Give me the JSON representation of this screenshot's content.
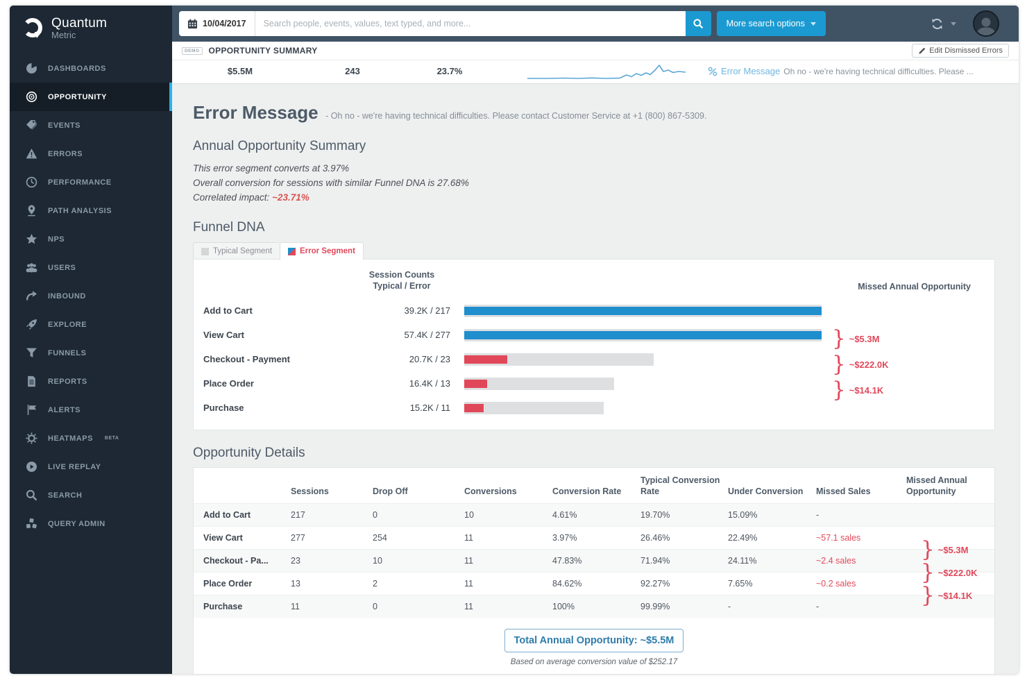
{
  "brand": {
    "name": "Quantum",
    "sub": "Metric"
  },
  "topbar": {
    "date": "10/04/2017",
    "search_placeholder": "Search people, events, values, text typed, and more...",
    "more_search_label": "More search options"
  },
  "titlebar": {
    "demo_badge": "DEMO",
    "title": "OPPORTUNITY SUMMARY",
    "edit_button": "Edit Dismissed Errors"
  },
  "stats": {
    "missed_opportunity": "$5.5M",
    "sessions": "243",
    "rate": "23.7%",
    "error_label": "Error Message",
    "error_text": "Oh no - we're having technical difficulties. Please ..."
  },
  "sidebar": {
    "items": [
      {
        "label": "DASHBOARDS",
        "icon": "pie-chart",
        "active": false
      },
      {
        "label": "OPPORTUNITY",
        "icon": "target",
        "active": true
      },
      {
        "label": "EVENTS",
        "icon": "tags",
        "active": false
      },
      {
        "label": "ERRORS",
        "icon": "warning-triangle",
        "active": false
      },
      {
        "label": "PERFORMANCE",
        "icon": "clock-gauge",
        "active": false
      },
      {
        "label": "PATH ANALYSIS",
        "icon": "location-pin",
        "active": false
      },
      {
        "label": "NPS",
        "icon": "star",
        "active": false
      },
      {
        "label": "USERS",
        "icon": "user-group",
        "active": false
      },
      {
        "label": "INBOUND",
        "icon": "redirect-arrow",
        "active": false
      },
      {
        "label": "EXPLORE",
        "icon": "rocket",
        "active": false
      },
      {
        "label": "FUNNELS",
        "icon": "funnel",
        "active": false
      },
      {
        "label": "REPORTS",
        "icon": "document",
        "active": false
      },
      {
        "label": "ALERTS",
        "icon": "flag",
        "active": false
      },
      {
        "label": "HEATMAPS",
        "badge": "BETA",
        "icon": "gear-sun",
        "active": false
      },
      {
        "label": "LIVE REPLAY",
        "icon": "play-circle",
        "active": false
      },
      {
        "label": "SEARCH",
        "icon": "magnifier",
        "active": false
      },
      {
        "label": "QUERY ADMIN",
        "icon": "cluster",
        "active": false
      }
    ]
  },
  "main": {
    "title": "Error Message",
    "subtitle": "- Oh no - we're having technical difficulties. Please contact Customer Service at +1 (800) 867-5309.",
    "summary_heading": "Annual Opportunity Summary",
    "summary_line1": "This error segment converts at 3.97%",
    "summary_line2": "Overall conversion for sessions with similar Funnel DNA is 27.68%",
    "impact_label": "Correlated impact: ",
    "impact_value": "~23.71%",
    "funnel_heading": "Funnel DNA",
    "legend": {
      "typical": "Typical Segment",
      "error": "Error Segment"
    },
    "funnel": {
      "counts_header_line1": "Session Counts",
      "counts_header_line2": "Typical / Error",
      "right_header": "Missed Annual Opportunity",
      "rows": [
        {
          "label": "Add to Cart",
          "counts": "39.2K / 217",
          "typical_pct": 100,
          "error_pct": 100,
          "color": "#1f8ecd"
        },
        {
          "label": "View Cart",
          "counts": "57.4K / 277",
          "typical_pct": 100,
          "error_pct": 100,
          "color": "#1f8ecd"
        },
        {
          "label": "Checkout - Payment",
          "counts": "20.7K / 23",
          "typical_pct": 53,
          "error_pct": 12,
          "color": "#e0485a"
        },
        {
          "label": "Place Order",
          "counts": "16.4K / 13",
          "typical_pct": 42,
          "error_pct": 6.5,
          "color": "#e0485a"
        },
        {
          "label": "Purchase",
          "counts": "15.2K / 11",
          "typical_pct": 39,
          "error_pct": 5.5,
          "color": "#e0485a"
        }
      ],
      "braces": [
        {
          "value": "~$5.3M"
        },
        {
          "value": "~$222.0K"
        },
        {
          "value": "~$14.1K"
        }
      ]
    },
    "details_heading": "Opportunity Details",
    "table": {
      "headers": [
        "",
        "Sessions",
        "Drop Off",
        "Conversions",
        "Conversion Rate",
        "Typical Conversion Rate",
        "Under Conversion",
        "Missed Sales",
        "Missed Annual Opportunity"
      ],
      "rows": [
        {
          "stage": "Add to Cart",
          "sessions": "217",
          "drop_off": "0",
          "conversions": "10",
          "conversion_rate": "4.61%",
          "typical_conversion_rate": "19.70%",
          "under_conversion": "15.09%",
          "missed_sales": "-"
        },
        {
          "stage": "View Cart",
          "sessions": "277",
          "drop_off": "254",
          "conversions": "11",
          "conversion_rate": "3.97%",
          "typical_conversion_rate": "26.46%",
          "under_conversion": "22.49%",
          "missed_sales": "~57.1 sales"
        },
        {
          "stage": "Checkout - Pa...",
          "sessions": "23",
          "drop_off": "10",
          "conversions": "11",
          "conversion_rate": "47.83%",
          "typical_conversion_rate": "71.94%",
          "under_conversion": "24.11%",
          "missed_sales": "~2.4 sales"
        },
        {
          "stage": "Place Order",
          "sessions": "13",
          "drop_off": "2",
          "conversions": "11",
          "conversion_rate": "84.62%",
          "typical_conversion_rate": "92.27%",
          "under_conversion": "7.65%",
          "missed_sales": "~0.2 sales"
        },
        {
          "stage": "Purchase",
          "sessions": "11",
          "drop_off": "0",
          "conversions": "11",
          "conversion_rate": "100%",
          "typical_conversion_rate": "99.99%",
          "under_conversion": "-",
          "missed_sales": "-"
        }
      ],
      "braces": [
        {
          "value": "~$5.3M"
        },
        {
          "value": "~$222.0K"
        },
        {
          "value": "~$14.1K"
        }
      ]
    },
    "total_label": "Total Annual Opportunity: ~$5.5M",
    "total_note": "Based on average conversion value of $252.17"
  },
  "chart_data": [
    {
      "type": "bar",
      "title": "Funnel DNA",
      "orientation": "horizontal",
      "categories": [
        "Add to Cart",
        "View Cart",
        "Checkout - Payment",
        "Place Order",
        "Purchase"
      ],
      "series": [
        {
          "name": "Typical Segment",
          "values": [
            39200,
            57400,
            20700,
            16400,
            15200
          ],
          "color": "#dedfe0"
        },
        {
          "name": "Error Segment",
          "values": [
            217,
            277,
            23,
            13,
            11
          ],
          "color_first_two": "#1f8ecd",
          "color_rest": "#e0485a"
        }
      ],
      "value_labels": [
        "39.2K / 217",
        "57.4K / 277",
        "20.7K / 23",
        "16.4K / 13",
        "15.2K / 11"
      ],
      "annotations": [
        "~$5.3M",
        "~$222.0K",
        "~$14.1K"
      ],
      "legend_position": "top-left tabs"
    },
    {
      "type": "line",
      "title": "sessions sparkline",
      "description": "flat baseline rising with small peaks near the end, one tall spike",
      "color": "#5aa7d6"
    }
  ],
  "colors": {
    "sidebar_bg": "#1d2834",
    "topbar_bg": "#3f5365",
    "accent_blue": "#1b9ad2",
    "active_accent": "#29b2e8",
    "bar_blue": "#1f8ecd",
    "bar_red": "#e0485a",
    "red_text": "#d9534f",
    "link_blue": "#6db7e0",
    "content_bg": "#eef0f0"
  }
}
